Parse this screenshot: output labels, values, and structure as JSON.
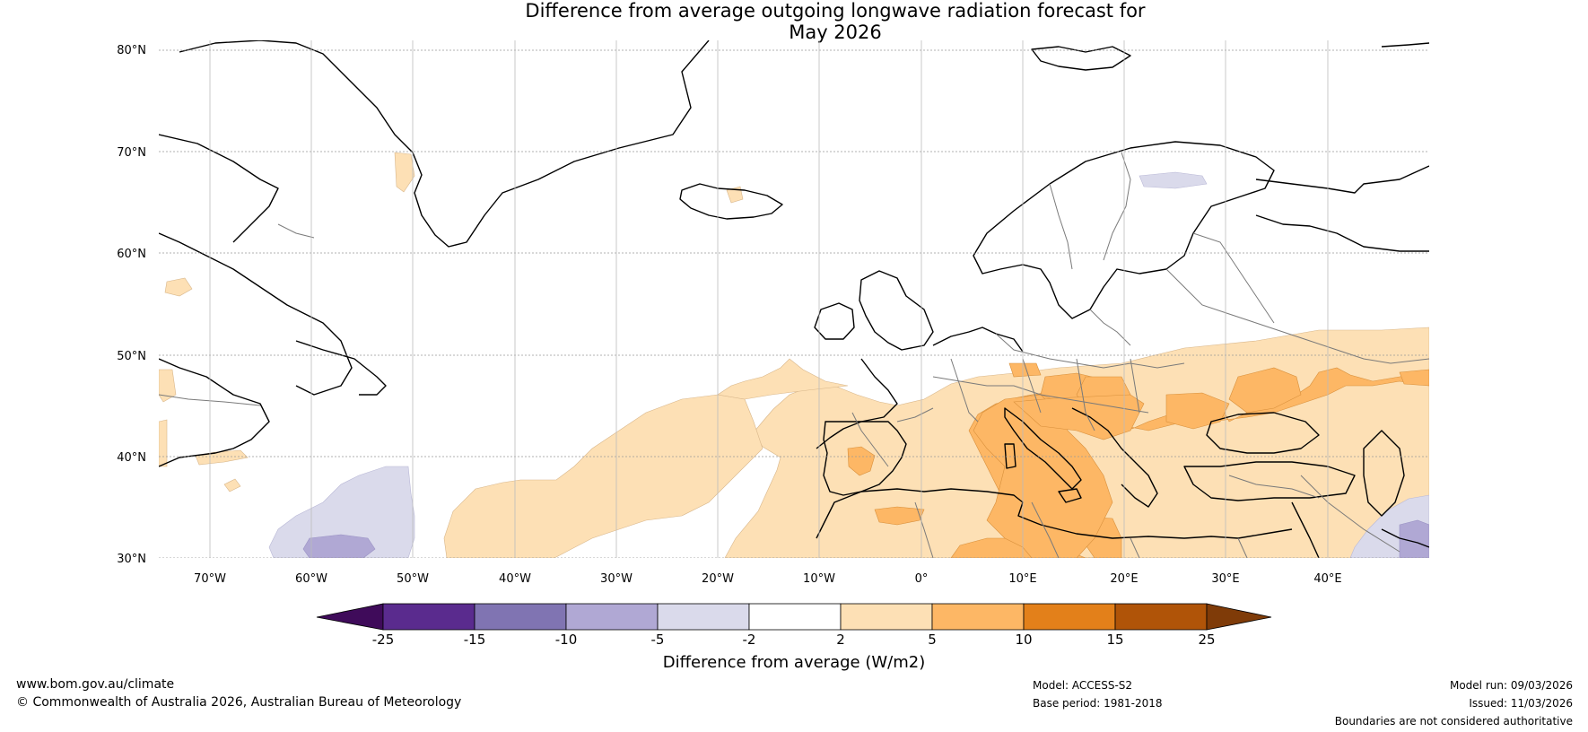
{
  "title_line1": "Difference from average outgoing longwave radiation forecast for",
  "title_line2": "May 2026",
  "map": {
    "lat_labels": [
      "80°N",
      "70°N",
      "60°N",
      "50°N",
      "40°N",
      "30°N"
    ],
    "lon_labels": [
      "70°W",
      "60°W",
      "50°W",
      "40°W",
      "30°W",
      "20°W",
      "10°W",
      "0°",
      "10°E",
      "20°E",
      "30°E",
      "40°E"
    ],
    "region": "North Atlantic and Europe, 75°W to 50°E, 30°N to 80°N"
  },
  "colorbar": {
    "title": "Difference from average (W/m2)",
    "tick_labels": [
      "-25",
      "-15",
      "-10",
      "-5",
      "-2",
      "2",
      "5",
      "10",
      "15",
      "25"
    ],
    "colors": [
      "#3f0b5a",
      "#5a2b8e",
      "#8074b2",
      "#b0a8d4",
      "#dadaeb",
      "#ffffff",
      "#fde0b5",
      "#fdb765",
      "#e3801a",
      "#b05408",
      "#7f3b08"
    ]
  },
  "footer": {
    "website": "www.bom.gov.au/climate",
    "copyright": "© Commonwealth of Australia 2026, Australian Bureau of Meteorology",
    "model": "Model: ACCESS-S2",
    "base_period": "Base period: 1981-2018",
    "model_run": "Model run: 09/03/2026",
    "issued": "Issued: 11/03/2026",
    "disclaimer": "Boundaries are not considered authoritative"
  }
}
